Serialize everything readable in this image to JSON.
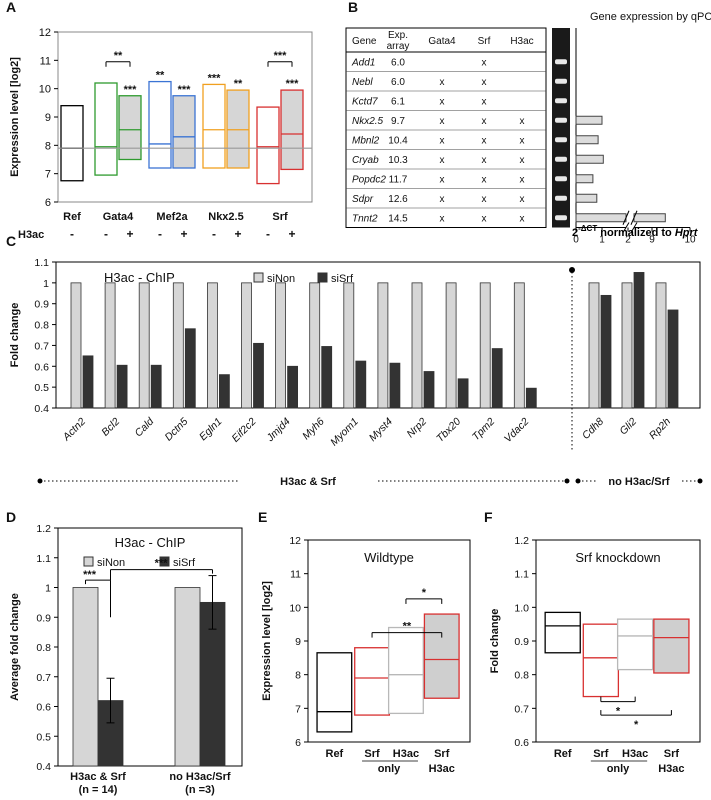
{
  "panels": {
    "A": {
      "letter": "A"
    },
    "B": {
      "letter": "B"
    },
    "C": {
      "letter": "C"
    },
    "D": {
      "letter": "D"
    },
    "E": {
      "letter": "E"
    },
    "F": {
      "letter": "F"
    }
  },
  "panel_b_table": {
    "headers": [
      "Gene",
      "Exp. array",
      "Gata4",
      "Srf",
      "H3ac"
    ],
    "rows": [
      {
        "gene": "Add1",
        "exp": "6.0",
        "gata4": "",
        "srf": "x",
        "h3ac": ""
      },
      {
        "gene": "Nebl",
        "exp": "6.0",
        "gata4": "x",
        "srf": "x",
        "h3ac": ""
      },
      {
        "gene": "Kctd7",
        "exp": "6.1",
        "gata4": "x",
        "srf": "x",
        "h3ac": ""
      },
      {
        "gene": "Nkx2.5",
        "exp": "9.7",
        "gata4": "x",
        "srf": "x",
        "h3ac": "x"
      },
      {
        "gene": "Mbnl2",
        "exp": "10.4",
        "gata4": "x",
        "srf": "x",
        "h3ac": "x"
      },
      {
        "gene": "Cryab",
        "exp": "10.3",
        "gata4": "x",
        "srf": "x",
        "h3ac": "x"
      },
      {
        "gene": "Popdc2",
        "exp": "11.7",
        "gata4": "x",
        "srf": "x",
        "h3ac": "x"
      },
      {
        "gene": "Sdpr",
        "exp": "12.6",
        "gata4": "x",
        "srf": "x",
        "h3ac": "x"
      },
      {
        "gene": "Tnnt2",
        "exp": "14.5",
        "gata4": "x",
        "srf": "x",
        "h3ac": "x"
      }
    ]
  },
  "chart_data": [
    {
      "panel": "A",
      "type": "box",
      "ylabel": "Expression level [log2]",
      "ylim": [
        6,
        12
      ],
      "yticks": [
        6,
        7,
        8,
        9,
        10,
        11,
        12
      ],
      "reference_line": 7.9,
      "row_label": "H3ac",
      "group_labels": [
        {
          "label": "Ref",
          "boxes": [
            0
          ]
        },
        {
          "label": "Gata4",
          "boxes": [
            1,
            2
          ]
        },
        {
          "label": "Mef2a",
          "boxes": [
            3,
            4
          ]
        },
        {
          "label": "Nkx2.5",
          "boxes": [
            5,
            6
          ]
        },
        {
          "label": "Srf",
          "boxes": [
            7,
            8
          ]
        }
      ],
      "boxes": [
        {
          "group": "Ref",
          "h3ac": "-",
          "low": 6.75,
          "median": 7.9,
          "high": 9.4,
          "color": "#000000",
          "fill": "#ffffff",
          "sig": ""
        },
        {
          "group": "Gata4",
          "h3ac": "-",
          "low": 6.95,
          "median": 7.95,
          "high": 10.2,
          "color": "#2e9a2e",
          "fill": "#ffffff",
          "sig": ""
        },
        {
          "group": "Gata4",
          "h3ac": "+",
          "low": 7.5,
          "median": 8.55,
          "high": 9.75,
          "color": "#2e9a2e",
          "fill": "#d6d6d6",
          "sig": "***"
        },
        {
          "group": "Mef2a",
          "h3ac": "-",
          "low": 7.2,
          "median": 8.05,
          "high": 10.25,
          "color": "#3b74d4",
          "fill": "#ffffff",
          "sig": "**"
        },
        {
          "group": "Mef2a",
          "h3ac": "+",
          "low": 7.2,
          "median": 8.3,
          "high": 9.75,
          "color": "#3b74d4",
          "fill": "#d6d6d6",
          "sig": "***"
        },
        {
          "group": "Nkx2.5",
          "h3ac": "-",
          "low": 7.2,
          "median": 8.55,
          "high": 10.15,
          "color": "#f0a020",
          "fill": "#ffffff",
          "sig": "***"
        },
        {
          "group": "Nkx2.5",
          "h3ac": "+",
          "low": 7.2,
          "median": 8.55,
          "high": 9.95,
          "color": "#f0a020",
          "fill": "#d6d6d6",
          "sig": "**"
        },
        {
          "group": "Srf",
          "h3ac": "-",
          "low": 6.65,
          "median": 7.95,
          "high": 9.35,
          "color": "#d83030",
          "fill": "#ffffff",
          "sig": ""
        },
        {
          "group": "Srf",
          "h3ac": "+",
          "low": 7.15,
          "median": 8.4,
          "high": 9.95,
          "color": "#d83030",
          "fill": "#d6d6d6",
          "sig": "***"
        }
      ],
      "brackets": [
        {
          "from": 1,
          "to": 2,
          "y": 10.95,
          "sig": "**"
        },
        {
          "from": 7,
          "to": 8,
          "y": 10.95,
          "sig": "***"
        }
      ]
    },
    {
      "panel": "B",
      "type": "bar",
      "orientation": "horizontal",
      "title": "Gene expression by qPCR",
      "xlabel_main": "2",
      "xlabel_sup": "-ΔCT",
      "xlabel_rest": " normalized to ",
      "xlabel_gene": "Hprt",
      "xticks": [
        "0",
        "1",
        "2",
        "9",
        "10"
      ],
      "categories": [
        "Add1",
        "Nebl",
        "Kctd7",
        "Nkx2.5",
        "Mbnl2",
        "Cryab",
        "Popdc2",
        "Sdpr",
        "Tnnt2"
      ],
      "values": [
        0,
        0,
        0,
        1.0,
        0.85,
        1.05,
        0.65,
        0.8,
        9.35
      ]
    },
    {
      "panel": "C",
      "type": "bar",
      "title": "H3ac - ChIP",
      "ylabel": "Fold change",
      "ylim": [
        0.4,
        1.1
      ],
      "yticks": [
        0.4,
        0.5,
        0.6,
        0.7,
        0.8,
        0.9,
        1,
        1.1
      ],
      "categories": [
        "Actn2",
        "Bcl2",
        "Cald",
        "Dctn5",
        "Egln1",
        "Eif2c2",
        "Jmjd4",
        "Myh6",
        "Myom1",
        "Myst4",
        "Nrp2",
        "Tbx20",
        "Tpm2",
        "Vdac2",
        "Cdh8",
        "Gli2",
        "Rp2h"
      ],
      "series": [
        {
          "name": "siNon",
          "color": "#d6d6d6",
          "values": [
            1,
            1,
            1,
            1,
            1,
            1,
            1,
            1,
            1,
            1,
            1,
            1,
            1,
            1,
            1,
            1,
            1
          ]
        },
        {
          "name": "siSrf",
          "color": "#333333",
          "values": [
            0.65,
            0.605,
            0.605,
            0.78,
            0.56,
            0.71,
            0.6,
            0.695,
            0.625,
            0.615,
            0.575,
            0.54,
            0.685,
            0.495,
            0.94,
            1.05,
            0.87
          ]
        }
      ],
      "group_captions": [
        "H3ac & Srf",
        "no H3ac/Srf"
      ]
    },
    {
      "panel": "D",
      "type": "bar",
      "title": "H3ac - ChIP",
      "ylabel": "Average fold change",
      "ylim": [
        0.4,
        1.2
      ],
      "yticks": [
        0.4,
        0.5,
        0.6,
        0.7,
        0.8,
        0.9,
        1,
        1.1,
        1.2
      ],
      "categories": [
        "H3ac & Srf",
        "no H3ac/Srf"
      ],
      "category_n": [
        "(n = 14)",
        "(n =3)"
      ],
      "series": [
        {
          "name": "siNon",
          "color": "#d6d6d6",
          "values": [
            1,
            1
          ],
          "errors": [
            0,
            0
          ]
        },
        {
          "name": "siSrf",
          "color": "#333333",
          "values": [
            0.62,
            0.95
          ],
          "errors": [
            0.075,
            0.09
          ]
        }
      ],
      "significance": [
        "***",
        "***"
      ]
    },
    {
      "panel": "E",
      "type": "box",
      "title": "Wildtype",
      "ylabel": "Expression level [log2]",
      "ylim": [
        6,
        12
      ],
      "yticks": [
        6,
        7,
        8,
        9,
        10,
        11,
        12
      ],
      "categories": [
        "Ref",
        "Srf",
        "H3ac",
        "Srf"
      ],
      "sublabels": [
        "",
        "only",
        "",
        "H3ac"
      ],
      "boxes": [
        {
          "low": 6.3,
          "median": 6.9,
          "high": 8.65,
          "color": "#000000",
          "fill": "#ffffff"
        },
        {
          "low": 6.8,
          "median": 7.9,
          "high": 8.8,
          "color": "#d83030",
          "fill": "#ffffff"
        },
        {
          "low": 6.85,
          "median": 8.0,
          "high": 9.4,
          "color": "#b8b8b8",
          "fill": "#ffffff"
        },
        {
          "low": 7.3,
          "median": 8.45,
          "high": 9.8,
          "color": "#d83030",
          "fill": "#cfcfcf"
        }
      ],
      "brackets": [
        {
          "from": 1,
          "to": 3,
          "y": 9.25,
          "sig": "**"
        },
        {
          "from": 2,
          "to": 3,
          "y": 10.25,
          "sig": "*"
        }
      ]
    },
    {
      "panel": "F",
      "type": "box",
      "title": "Srf knockdown",
      "ylabel": "Fold change",
      "ylim": [
        0.6,
        1.2
      ],
      "yticks": [
        0.6,
        0.7,
        0.8,
        0.9,
        1.0,
        1.1,
        1.2
      ],
      "categories": [
        "Ref",
        "Srf",
        "H3ac",
        "Srf"
      ],
      "sublabels": [
        "",
        "only",
        "",
        "H3ac"
      ],
      "boxes": [
        {
          "low": 0.865,
          "median": 0.945,
          "high": 0.985,
          "color": "#000000",
          "fill": "#ffffff"
        },
        {
          "low": 0.735,
          "median": 0.85,
          "high": 0.95,
          "color": "#d83030",
          "fill": "#ffffff"
        },
        {
          "low": 0.815,
          "median": 0.915,
          "high": 0.965,
          "color": "#b8b8b8",
          "fill": "#ffffff"
        },
        {
          "low": 0.805,
          "median": 0.91,
          "high": 0.965,
          "color": "#d83030",
          "fill": "#cfcfcf"
        }
      ],
      "brackets": [
        {
          "from": 1,
          "to": 2,
          "y": 0.72,
          "sig": "*",
          "below": true
        },
        {
          "from": 1,
          "to": 3,
          "y": 0.68,
          "sig": "*",
          "below": true
        }
      ]
    }
  ]
}
